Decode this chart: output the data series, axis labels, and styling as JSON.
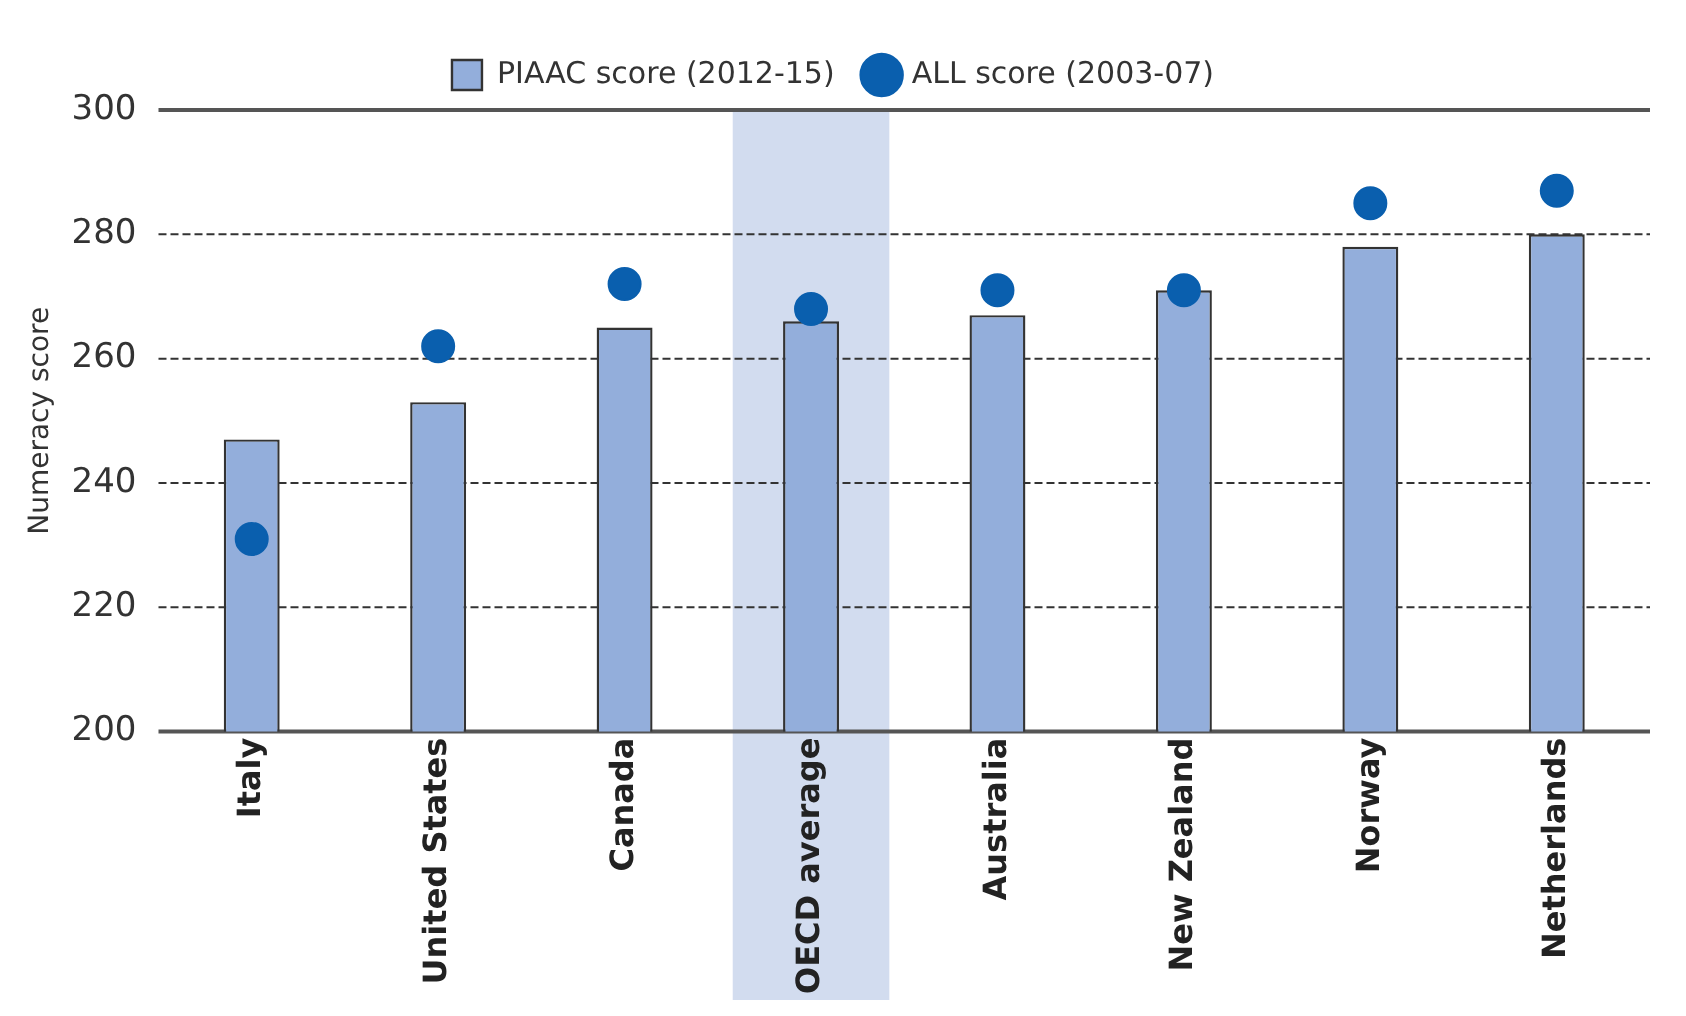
{
  "chart_data": {
    "type": "bar",
    "ylabel": "Numeracy score",
    "categories": [
      "Italy",
      "United States",
      "Canada",
      "OECD average",
      "Australia",
      "New Zealand",
      "Norway",
      "Netherlands"
    ],
    "series": [
      {
        "name": "PIAAC score (2012-15)",
        "color": "#93aedb",
        "values": [
          247,
          253,
          265,
          266,
          267,
          271,
          278,
          280
        ]
      },
      {
        "name": "ALL score (2003-07)",
        "type": "scatter",
        "color": "#0a5fae",
        "x": [
          "Italy",
          "United States",
          "Canada",
          "OECD average",
          "Australia",
          "New Zealand",
          "Norway",
          "Netherlands"
        ],
        "values": [
          231,
          262,
          272,
          268,
          271,
          271,
          285,
          287
        ]
      }
    ],
    "ylim": [
      200,
      300
    ],
    "yticks": [
      200,
      220,
      240,
      260,
      280,
      300
    ],
    "bands": [
      {
        "axis": "x",
        "from": "OECD average",
        "to": "OECD average",
        "color": "#d2dcef"
      }
    ],
    "grid": "y",
    "legend": "top",
    "marker": "circle"
  }
}
